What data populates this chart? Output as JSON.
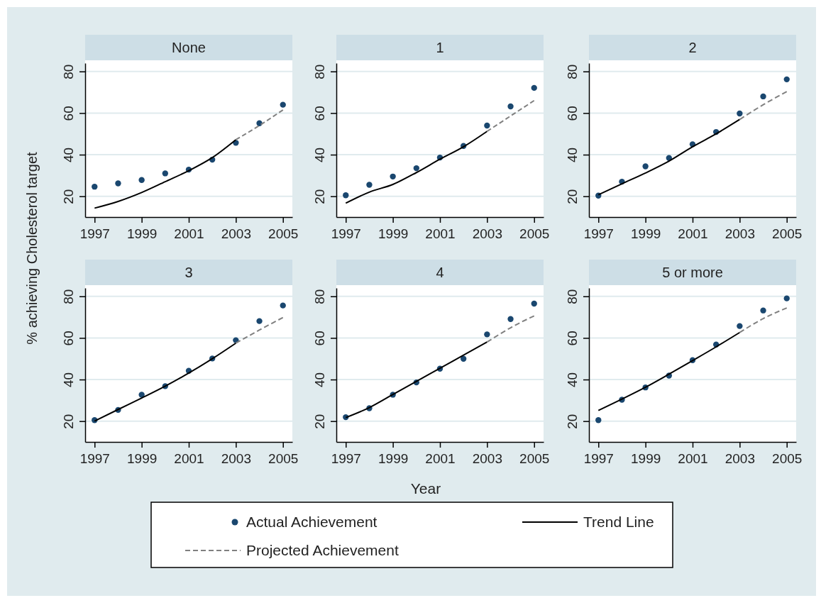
{
  "chart_data": [
    {
      "type": "line",
      "title": "None",
      "ylabel": "% achieving Cholesterol target",
      "xlim": [
        1996.6,
        2005.4
      ],
      "xticks": [
        1997,
        1999,
        2001,
        2003,
        2005
      ],
      "ylim": [
        10,
        84
      ],
      "yticks": [
        20,
        40,
        60,
        80
      ],
      "grid": "y",
      "legend": "bottom",
      "series": [
        {
          "name": "Actual Achievement",
          "type": "scatter",
          "marker": "circle",
          "color": "#1a476f",
          "x": [
            1997,
            1998,
            1999,
            2000,
            2001,
            2002,
            2003,
            2004,
            2005
          ],
          "values": [
            24.6,
            26.2,
            27.8,
            31,
            32.8,
            37.6,
            45.7,
            55.1,
            64
          ]
        },
        {
          "name": "Trend Line",
          "line_style": "solid",
          "color": "#000000",
          "x": [
            1997,
            1998,
            1999,
            2000,
            2001,
            2002,
            2003
          ],
          "values": [
            14.3,
            17.5,
            21.8,
            27,
            32.3,
            38.6,
            47.2
          ]
        },
        {
          "name": "Projected Achievement",
          "line_style": "dashed",
          "color": "#808080",
          "x": [
            2003,
            2004,
            2005
          ],
          "values": [
            47.2,
            54,
            61.5
          ]
        }
      ]
    },
    {
      "type": "line",
      "title": "1",
      "xlim": [
        1996.6,
        2005.4
      ],
      "xticks": [
        1997,
        1999,
        2001,
        2003,
        2005
      ],
      "ylim": [
        10,
        84
      ],
      "yticks": [
        20,
        40,
        60,
        80
      ],
      "grid": "y",
      "series": [
        {
          "type": "scatter",
          "marker": "circle",
          "color": "#1a476f",
          "x": [
            1997,
            1998,
            1999,
            2000,
            2001,
            2002,
            2003,
            2004,
            2005
          ],
          "values": [
            20.5,
            25.5,
            29.5,
            33.5,
            38.6,
            44.2,
            54,
            63.2,
            72.1
          ]
        },
        {
          "line_style": "solid",
          "color": "#000000",
          "x": [
            1997,
            1998,
            1999,
            2000,
            2001,
            2002,
            2003
          ],
          "values": [
            16.7,
            22,
            25.7,
            31.4,
            37.8,
            43.8,
            51.2
          ]
        },
        {
          "line_style": "dashed",
          "color": "#808080",
          "x": [
            2003,
            2004,
            2005
          ],
          "values": [
            51.2,
            58.6,
            66
          ]
        }
      ]
    },
    {
      "type": "line",
      "title": "2",
      "xlim": [
        1996.6,
        2005.4
      ],
      "xticks": [
        1997,
        1999,
        2001,
        2003,
        2005
      ],
      "ylim": [
        10,
        84
      ],
      "yticks": [
        20,
        40,
        60,
        80
      ],
      "grid": "y",
      "series": [
        {
          "type": "scatter",
          "marker": "circle",
          "color": "#1a476f",
          "x": [
            1997,
            1998,
            1999,
            2000,
            2001,
            2002,
            2003,
            2004,
            2005
          ],
          "values": [
            20.3,
            27,
            34.4,
            38.4,
            45,
            50.9,
            59.8,
            68,
            76.2
          ]
        },
        {
          "line_style": "solid",
          "color": "#000000",
          "x": [
            1997,
            1998,
            1999,
            2000,
            2001,
            2002,
            2003
          ],
          "values": [
            20.7,
            26,
            31.2,
            36.9,
            43.8,
            50,
            56.9
          ]
        },
        {
          "line_style": "dashed",
          "color": "#808080",
          "x": [
            2003,
            2004,
            2005
          ],
          "values": [
            56.9,
            64,
            70.3
          ]
        }
      ]
    },
    {
      "type": "line",
      "title": "3",
      "xlim": [
        1996.6,
        2005.4
      ],
      "xticks": [
        1997,
        1999,
        2001,
        2003,
        2005
      ],
      "ylim": [
        10,
        84
      ],
      "yticks": [
        20,
        40,
        60,
        80
      ],
      "grid": "y",
      "series": [
        {
          "type": "scatter",
          "marker": "circle",
          "color": "#1a476f",
          "x": [
            1997,
            1998,
            1999,
            2000,
            2001,
            2002,
            2003,
            2004,
            2005
          ],
          "values": [
            20.5,
            25.4,
            32.7,
            36.8,
            44.2,
            50.1,
            58.9,
            68.1,
            75.6
          ]
        },
        {
          "line_style": "solid",
          "color": "#000000",
          "x": [
            1997,
            1998,
            1999,
            2000,
            2001,
            2002,
            2003
          ],
          "values": [
            20,
            25.6,
            31.1,
            36.8,
            43.1,
            50,
            57.5
          ]
        },
        {
          "line_style": "dashed",
          "color": "#808080",
          "x": [
            2003,
            2004,
            2005
          ],
          "values": [
            57.5,
            63.8,
            69.8
          ]
        }
      ]
    },
    {
      "type": "line",
      "title": "4",
      "xlabel": "Year",
      "xlim": [
        1996.6,
        2005.4
      ],
      "xticks": [
        1997,
        1999,
        2001,
        2003,
        2005
      ],
      "ylim": [
        10,
        84
      ],
      "yticks": [
        20,
        40,
        60,
        80
      ],
      "grid": "y",
      "series": [
        {
          "type": "scatter",
          "marker": "circle",
          "color": "#1a476f",
          "x": [
            1997,
            1998,
            1999,
            2000,
            2001,
            2002,
            2003,
            2004,
            2005
          ],
          "values": [
            21.9,
            26.2,
            32.7,
            38.6,
            45.2,
            50,
            61.7,
            69.1,
            76.5
          ]
        },
        {
          "line_style": "solid",
          "color": "#000000",
          "x": [
            1997,
            1998,
            1999,
            2000,
            2001,
            2002,
            2003
          ],
          "values": [
            21.7,
            26.5,
            32.8,
            39.1,
            45.4,
            51.7,
            58
          ]
        },
        {
          "line_style": "dashed",
          "color": "#808080",
          "x": [
            2003,
            2004,
            2005
          ],
          "values": [
            58,
            64.9,
            70.6
          ]
        }
      ]
    },
    {
      "type": "line",
      "title": "5 or more",
      "xlim": [
        1996.6,
        2005.4
      ],
      "xticks": [
        1997,
        1999,
        2001,
        2003,
        2005
      ],
      "ylim": [
        10,
        84
      ],
      "yticks": [
        20,
        40,
        60,
        80
      ],
      "grid": "y",
      "series": [
        {
          "type": "scatter",
          "marker": "circle",
          "color": "#1a476f",
          "x": [
            1997,
            1998,
            1999,
            2000,
            2001,
            2002,
            2003,
            2004,
            2005
          ],
          "values": [
            20.5,
            30.3,
            36.2,
            41.9,
            49.3,
            56.8,
            65.7,
            73.2,
            79
          ]
        },
        {
          "line_style": "solid",
          "color": "#000000",
          "x": [
            1997,
            1998,
            1999,
            2000,
            2001,
            2002,
            2003
          ],
          "values": [
            25.1,
            30.6,
            36.3,
            42.6,
            49.1,
            55.7,
            62.6
          ]
        },
        {
          "line_style": "dashed",
          "color": "#808080",
          "x": [
            2003,
            2004,
            2005
          ],
          "values": [
            62.6,
            69.3,
            74.4
          ]
        }
      ]
    }
  ]
}
